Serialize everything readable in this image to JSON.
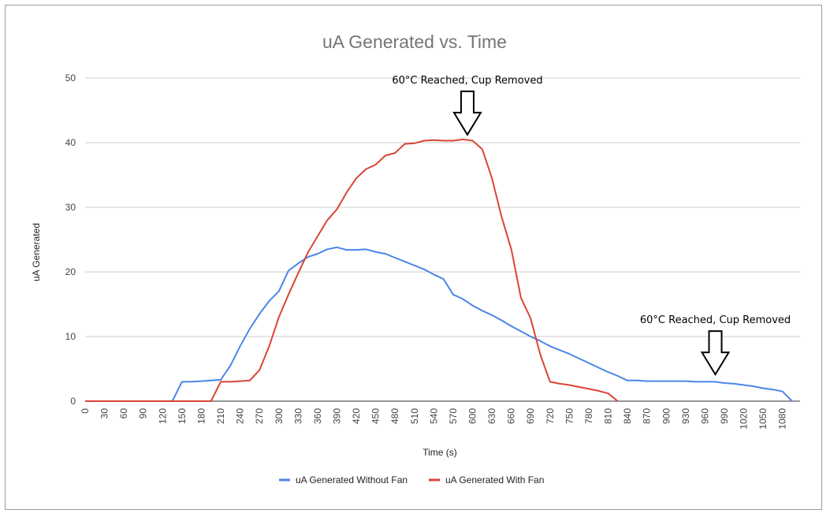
{
  "chart_data": {
    "type": "line",
    "title": "uA Generated vs. Time",
    "xlabel": "Time (s)",
    "ylabel": "uA Generated",
    "xlim": [
      0,
      1095
    ],
    "ylim": [
      0,
      50
    ],
    "x_ticks": [
      0,
      30,
      60,
      90,
      120,
      150,
      180,
      210,
      240,
      270,
      300,
      330,
      360,
      390,
      420,
      450,
      480,
      510,
      540,
      570,
      600,
      630,
      660,
      690,
      720,
      750,
      780,
      810,
      840,
      870,
      900,
      930,
      960,
      990,
      1020,
      1050,
      1080
    ],
    "y_ticks": [
      0,
      10,
      20,
      30,
      40,
      50
    ],
    "grid": true,
    "legend_position": "bottom",
    "series": [
      {
        "name": "uA Generated Without Fan",
        "color": "#4a86e8",
        "points": [
          [
            0,
            0
          ],
          [
            30,
            0
          ],
          [
            60,
            0
          ],
          [
            90,
            0
          ],
          [
            120,
            0
          ],
          [
            135,
            0
          ],
          [
            150,
            3
          ],
          [
            165,
            3
          ],
          [
            180,
            3.1
          ],
          [
            195,
            3.2
          ],
          [
            210,
            3.3
          ],
          [
            225,
            5.5
          ],
          [
            240,
            8.5
          ],
          [
            255,
            11.2
          ],
          [
            270,
            13.5
          ],
          [
            285,
            15.5
          ],
          [
            300,
            17
          ],
          [
            315,
            20.2
          ],
          [
            330,
            21.3
          ],
          [
            345,
            22.3
          ],
          [
            360,
            22.8
          ],
          [
            375,
            23.5
          ],
          [
            390,
            23.8
          ],
          [
            405,
            23.4
          ],
          [
            420,
            23.4
          ],
          [
            435,
            23.5
          ],
          [
            450,
            23.1
          ],
          [
            465,
            22.8
          ],
          [
            480,
            22.2
          ],
          [
            495,
            21.6
          ],
          [
            510,
            21
          ],
          [
            525,
            20.4
          ],
          [
            540,
            19.6
          ],
          [
            555,
            18.9
          ],
          [
            570,
            16.5
          ],
          [
            585,
            15.8
          ],
          [
            600,
            14.8
          ],
          [
            615,
            14
          ],
          [
            630,
            13.3
          ],
          [
            645,
            12.5
          ],
          [
            660,
            11.6
          ],
          [
            675,
            10.8
          ],
          [
            690,
            10
          ],
          [
            705,
            9.3
          ],
          [
            720,
            8.5
          ],
          [
            735,
            7.9
          ],
          [
            750,
            7.3
          ],
          [
            765,
            6.6
          ],
          [
            780,
            5.9
          ],
          [
            795,
            5.2
          ],
          [
            810,
            4.5
          ],
          [
            825,
            3.9
          ],
          [
            840,
            3.2
          ],
          [
            855,
            3.2
          ],
          [
            870,
            3.1
          ],
          [
            885,
            3.1
          ],
          [
            900,
            3.1
          ],
          [
            915,
            3.1
          ],
          [
            930,
            3.1
          ],
          [
            945,
            3
          ],
          [
            960,
            3
          ],
          [
            975,
            3
          ],
          [
            990,
            2.8
          ],
          [
            1005,
            2.7
          ],
          [
            1020,
            2.5
          ],
          [
            1035,
            2.3
          ],
          [
            1050,
            2
          ],
          [
            1065,
            1.8
          ],
          [
            1080,
            1.5
          ],
          [
            1095,
            0
          ]
        ]
      },
      {
        "name": "uA Generated With Fan",
        "color": "#db4437",
        "points": [
          [
            0,
            0
          ],
          [
            30,
            0
          ],
          [
            60,
            0
          ],
          [
            90,
            0
          ],
          [
            120,
            0
          ],
          [
            150,
            0
          ],
          [
            165,
            0
          ],
          [
            180,
            0
          ],
          [
            195,
            0
          ],
          [
            210,
            3
          ],
          [
            225,
            3
          ],
          [
            240,
            3.1
          ],
          [
            255,
            3.2
          ],
          [
            270,
            4.8
          ],
          [
            285,
            8.5
          ],
          [
            300,
            13
          ],
          [
            315,
            16.5
          ],
          [
            330,
            19.8
          ],
          [
            345,
            23
          ],
          [
            360,
            25.5
          ],
          [
            375,
            28
          ],
          [
            390,
            29.7
          ],
          [
            405,
            32.3
          ],
          [
            420,
            34.5
          ],
          [
            435,
            35.9
          ],
          [
            450,
            36.6
          ],
          [
            465,
            38
          ],
          [
            480,
            38.4
          ],
          [
            495,
            39.8
          ],
          [
            510,
            39.9
          ],
          [
            525,
            40.3
          ],
          [
            540,
            40.4
          ],
          [
            555,
            40.3
          ],
          [
            570,
            40.3
          ],
          [
            585,
            40.5
          ],
          [
            600,
            40.3
          ],
          [
            615,
            39
          ],
          [
            630,
            34.5
          ],
          [
            645,
            28.5
          ],
          [
            660,
            23.5
          ],
          [
            675,
            16
          ],
          [
            690,
            12.8
          ],
          [
            705,
            7.2
          ],
          [
            720,
            3
          ],
          [
            735,
            2.7
          ],
          [
            750,
            2.5
          ],
          [
            765,
            2.2
          ],
          [
            780,
            1.9
          ],
          [
            795,
            1.6
          ],
          [
            810,
            1.2
          ],
          [
            825,
            0
          ]
        ]
      }
    ],
    "annotations": [
      {
        "text": "60°C Reached, Cup Removed",
        "x": 592,
        "y": 40.5
      },
      {
        "text": "60°C Reached, Cup Removed",
        "x": 976,
        "y": 3.4
      }
    ]
  }
}
